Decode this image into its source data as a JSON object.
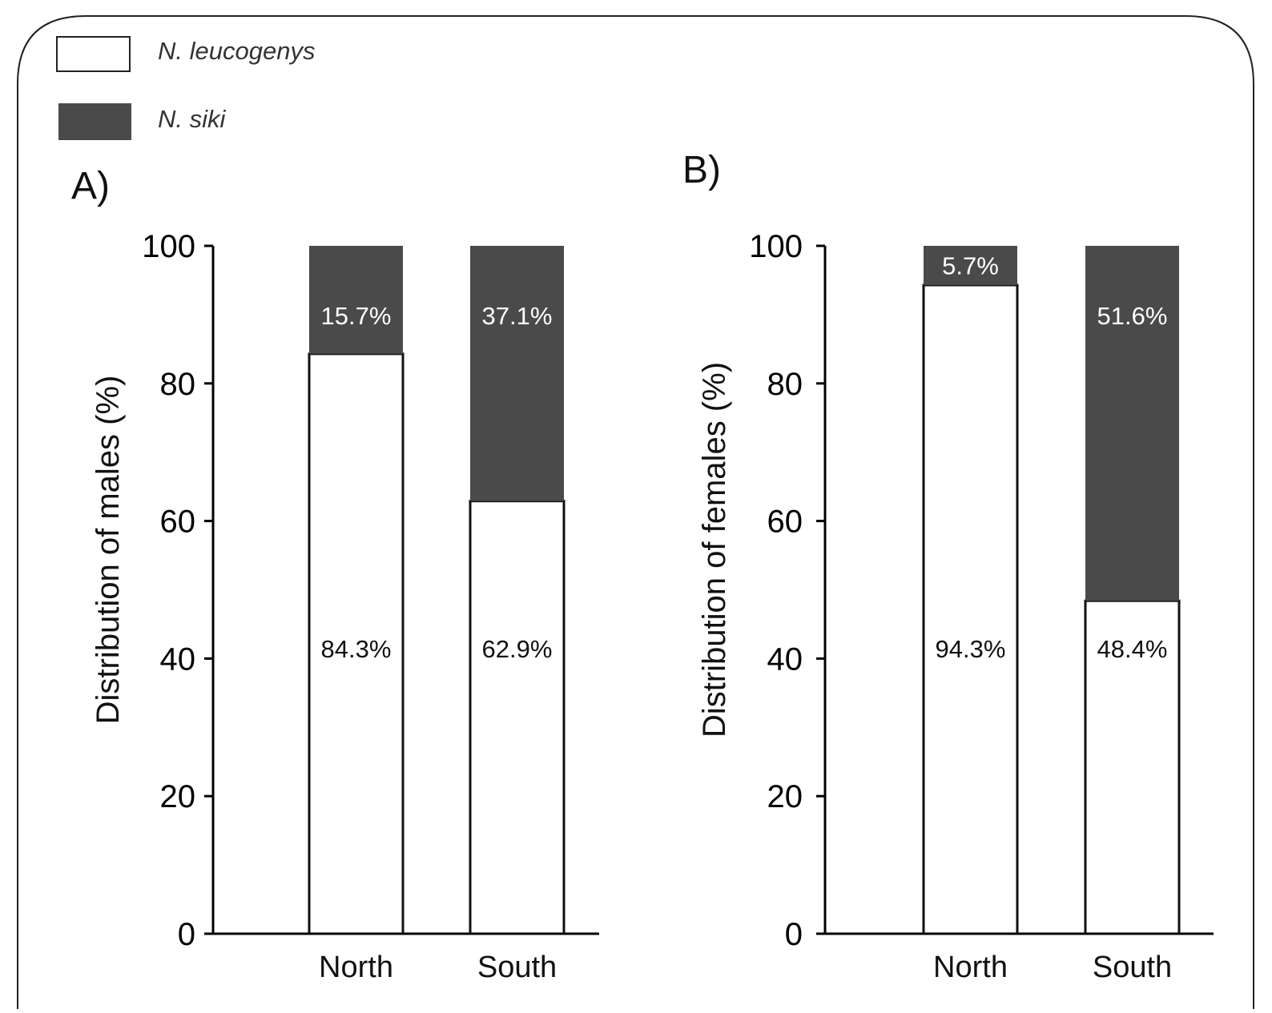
{
  "legend": [
    {
      "name": "N. leucogenys",
      "color": "#ffffff"
    },
    {
      "name": "N. siki",
      "color": "#4a4a4a"
    }
  ],
  "chart_data": [
    {
      "type": "bar",
      "stacked": true,
      "panel_label": "A)",
      "title": "",
      "xlabel": "",
      "ylabel": "Distribution of males (%)",
      "ylim": [
        0,
        100
      ],
      "yticks": [
        0,
        20,
        40,
        60,
        80,
        100
      ],
      "categories": [
        "North",
        "South"
      ],
      "series": [
        {
          "name": "N. leucogenys",
          "color": "#ffffff",
          "values": [
            84.3,
            62.9
          ],
          "labels": [
            "84.3%",
            "62.9%"
          ]
        },
        {
          "name": "N. siki",
          "color": "#4a4a4a",
          "values": [
            15.7,
            37.1
          ],
          "labels": [
            "15.7%",
            "37.1%"
          ]
        }
      ],
      "grid": false,
      "legend_position": "top-left"
    },
    {
      "type": "bar",
      "stacked": true,
      "panel_label": "B)",
      "title": "",
      "xlabel": "",
      "ylabel": "Distribution of females (%)",
      "ylim": [
        0,
        100
      ],
      "yticks": [
        0,
        20,
        40,
        60,
        80,
        100
      ],
      "categories": [
        "North",
        "South"
      ],
      "series": [
        {
          "name": "N. leucogenys",
          "color": "#ffffff",
          "values": [
            94.3,
            48.4
          ],
          "labels": [
            "94.3%",
            "48.4%"
          ]
        },
        {
          "name": "N. siki",
          "color": "#4a4a4a",
          "values": [
            5.7,
            51.6
          ],
          "labels": [
            "5.7%",
            "51.6%"
          ]
        }
      ],
      "grid": false,
      "legend_position": "top-left"
    }
  ]
}
